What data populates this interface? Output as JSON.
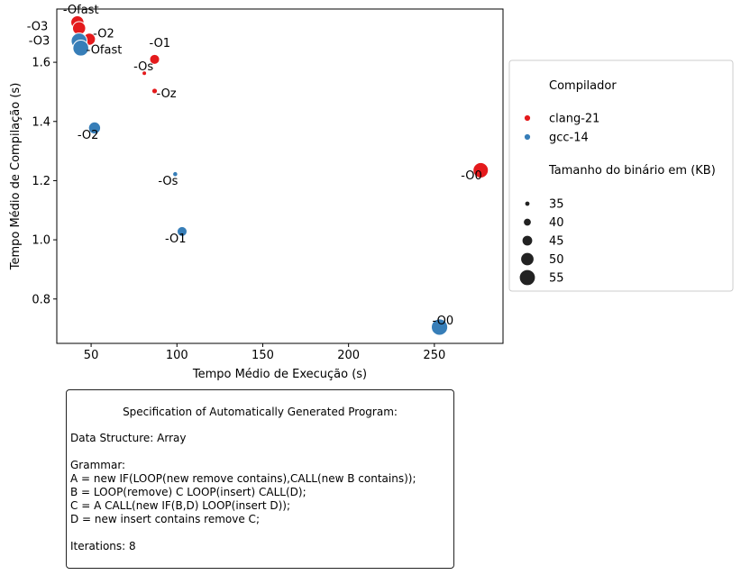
{
  "chart_data": {
    "type": "scatter",
    "xlabel": "Tempo Médio de Execução (s)",
    "ylabel": "Tempo Médio de Compilação (s)",
    "xlim": [
      30,
      290
    ],
    "ylim": [
      0.65,
      1.78
    ],
    "xticks": [
      50,
      100,
      150,
      200,
      250
    ],
    "yticks": [
      0.8,
      1.0,
      1.2,
      1.4,
      1.6
    ],
    "grid": false,
    "legend_position": "right",
    "legend": {
      "hue_title": "Compilador",
      "size_title": "Tamanho do binário em (KB)",
      "hue_entries": [
        {
          "label": "clang-21",
          "color": "#e41a1c"
        },
        {
          "label": "gcc-14",
          "color": "#377eb8"
        }
      ],
      "size_entries": [
        {
          "label": "35",
          "value": 35
        },
        {
          "label": "40",
          "value": 40
        },
        {
          "label": "45",
          "value": 45
        },
        {
          "label": "50",
          "value": 50
        },
        {
          "label": "55",
          "value": 55
        }
      ]
    },
    "series": [
      {
        "name": "clang-21",
        "color": "#e41a1c",
        "points": [
          {
            "label": "-Ofast",
            "x": 42,
            "y": 1.735,
            "size": 50
          },
          {
            "label": "-O3",
            "x": 43,
            "y": 1.715,
            "size": 50
          },
          {
            "label": "-O2",
            "x": 49,
            "y": 1.678,
            "size": 48
          },
          {
            "label": "-O1",
            "x": 87,
            "y": 1.61,
            "size": 44
          },
          {
            "label": "-Os",
            "x": 81,
            "y": 1.563,
            "size": 34
          },
          {
            "label": "-Oz",
            "x": 87,
            "y": 1.503,
            "size": 36
          },
          {
            "label": "-O0",
            "x": 277,
            "y": 1.235,
            "size": 54
          }
        ]
      },
      {
        "name": "gcc-14",
        "color": "#377eb8",
        "points": [
          {
            "label": "-O3",
            "x": 43,
            "y": 1.672,
            "size": 55
          },
          {
            "label": "-Ofast",
            "x": 44,
            "y": 1.648,
            "size": 55
          },
          {
            "label": "-O2",
            "x": 52,
            "y": 1.378,
            "size": 48
          },
          {
            "label": "-Os",
            "x": 99,
            "y": 1.222,
            "size": 35
          },
          {
            "label": "-O1",
            "x": 103,
            "y": 1.028,
            "size": 44
          },
          {
            "label": "-O0",
            "x": 253,
            "y": 0.705,
            "size": 56
          }
        ]
      }
    ]
  },
  "spec": {
    "title": "Specification of Automatically Generated Program:",
    "data_structure": "Data Structure: Array",
    "grammar_header": "Grammar:",
    "grammar_lines": [
      "A = new IF(LOOP(new remove contains),CALL(new B contains));",
      "B = LOOP(remove) C LOOP(insert) CALL(D);",
      "C = A CALL(new IF(B,D) LOOP(insert D));",
      "D = new insert contains remove C;"
    ],
    "iterations": "Iterations: 8"
  }
}
